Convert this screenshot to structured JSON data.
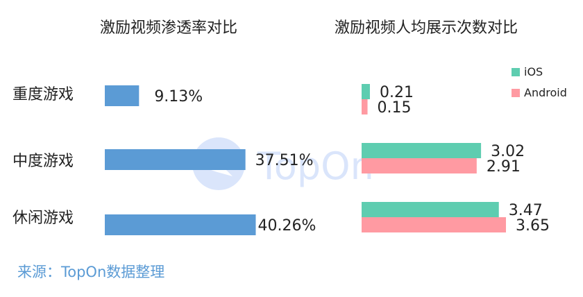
{
  "chart_data": [
    {
      "type": "bar",
      "orientation": "horizontal",
      "title": "激励视频渗透率对比",
      "categories": [
        "重度游戏",
        "中度游戏",
        "休闲游戏"
      ],
      "values": [
        9.13,
        37.51,
        40.26
      ],
      "value_labels": [
        "9.13%",
        "37.51%",
        "40.26%"
      ],
      "unit": "%",
      "color": "#5B9BD5"
    },
    {
      "type": "bar",
      "orientation": "horizontal",
      "title": "激励视频人均展示次数对比",
      "categories": [
        "重度游戏",
        "中度游戏",
        "休闲游戏"
      ],
      "series": [
        {
          "name": "iOS",
          "values": [
            0.21,
            3.02,
            3.47
          ],
          "labels": [
            "0.21",
            "3.02",
            "3.47"
          ],
          "color": "#5ECDB0"
        },
        {
          "name": "Android",
          "values": [
            0.15,
            2.91,
            3.65
          ],
          "labels": [
            "0.15",
            "2.91",
            "3.65"
          ],
          "color": "#FF9AA2"
        }
      ],
      "legend": "top-right"
    }
  ],
  "source": "来源：TopOn数据整理",
  "watermark": {
    "text": "TopOn",
    "color": "#5B8DEF"
  },
  "colors": {
    "source_text": "#5B9BD5"
  }
}
